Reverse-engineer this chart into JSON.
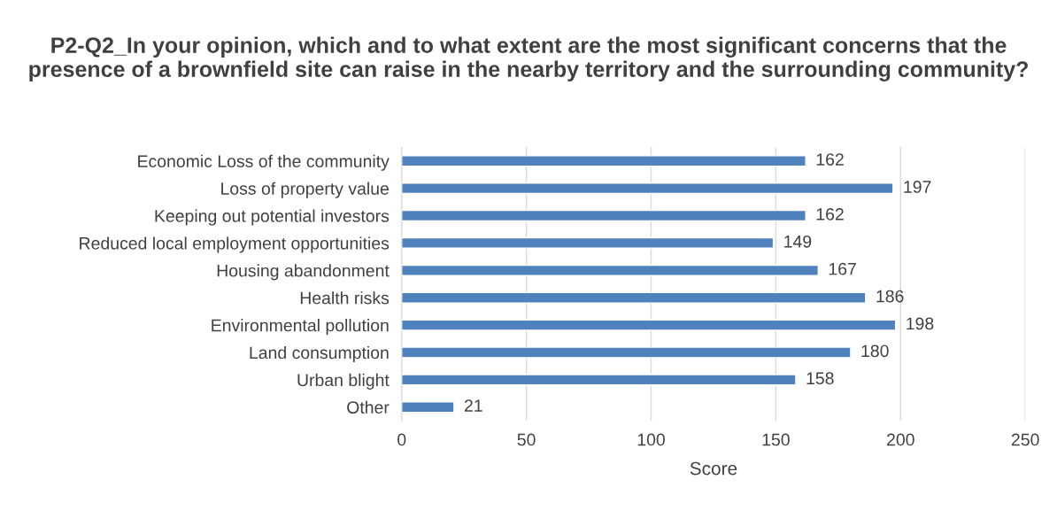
{
  "chart_data": {
    "type": "bar",
    "orientation": "horizontal",
    "title": "P2-Q2_In your opinion, which and to what extent are the most significant concerns that the presence of a brownfield site can raise in the nearby territory and the surrounding community?",
    "xlabel": "Score",
    "categories": [
      "Economic Loss of the community",
      "Loss of property value",
      "Keeping out potential investors",
      "Reduced local employment opportunities",
      "Housing abandonment",
      "Health risks",
      "Environmental pollution",
      "Land consumption",
      "Urban blight",
      "Other"
    ],
    "values": [
      162,
      197,
      162,
      149,
      167,
      186,
      198,
      180,
      158,
      21
    ],
    "color": "#4f81bd",
    "xlim": [
      0,
      250
    ],
    "xticks": [
      0,
      50,
      100,
      150,
      200,
      250
    ],
    "grid": "x",
    "data_labels": true
  }
}
